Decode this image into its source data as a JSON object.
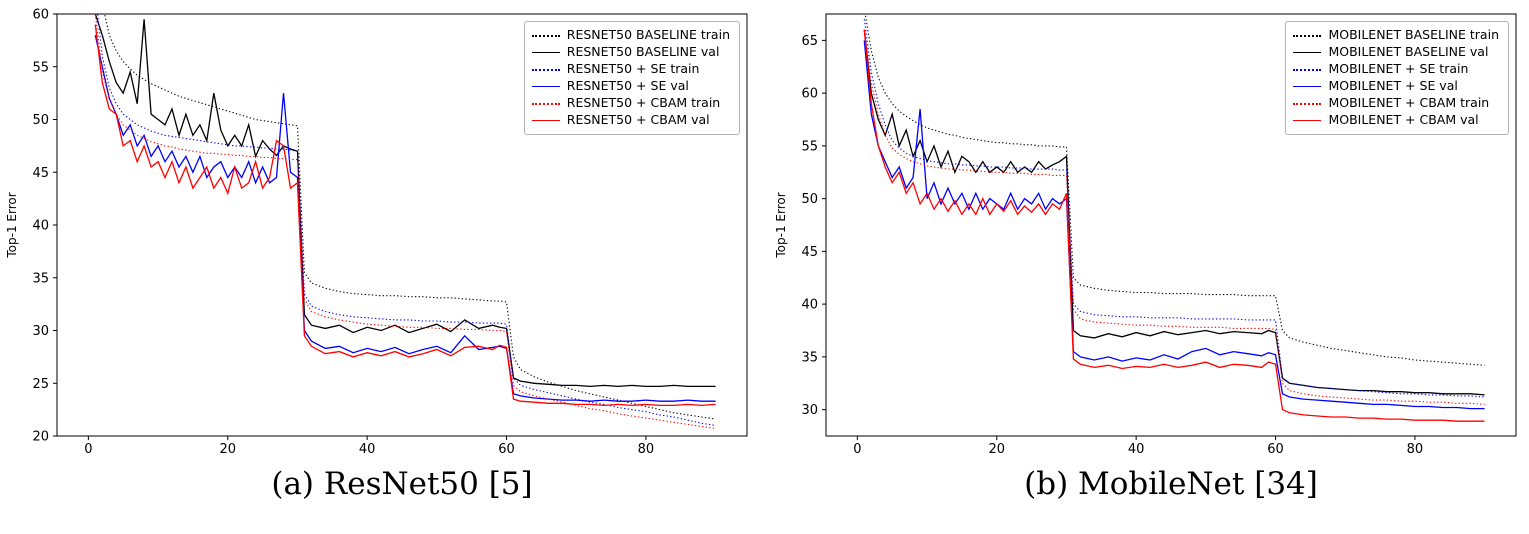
{
  "chart_data": [
    {
      "id": "resnet50",
      "type": "line",
      "caption": "(a) ResNet50 [5]",
      "title": "",
      "xlabel": "",
      "ylabel": "Top-1 Error",
      "ylim": [
        20,
        60
      ],
      "xlim": [
        -4.5,
        94.5
      ],
      "yticks": [
        20,
        25,
        30,
        35,
        40,
        45,
        50,
        55,
        60
      ],
      "xticks": [
        0,
        20,
        40,
        60,
        80
      ],
      "grid": false,
      "legend_position": "upper right",
      "x": [
        1,
        2,
        3,
        4,
        5,
        6,
        7,
        8,
        9,
        10,
        11,
        12,
        13,
        14,
        15,
        16,
        17,
        18,
        19,
        20,
        21,
        22,
        23,
        24,
        25,
        26,
        27,
        28,
        29,
        30,
        31,
        32,
        34,
        36,
        38,
        40,
        42,
        44,
        46,
        48,
        50,
        52,
        54,
        56,
        58,
        59,
        60,
        61,
        62,
        64,
        66,
        68,
        70,
        72,
        74,
        76,
        78,
        80,
        82,
        84,
        86,
        88,
        90
      ],
      "series": [
        {
          "name": "RESNET50 BASELINE train",
          "color": "#000000",
          "style": "dotted",
          "values": [
            67,
            61,
            58,
            56.5,
            55.5,
            54.8,
            54.2,
            53.8,
            53.4,
            53.1,
            52.8,
            52.5,
            52.2,
            52,
            51.8,
            51.6,
            51.4,
            51.2,
            51,
            50.8,
            50.6,
            50.4,
            50.2,
            50,
            49.9,
            49.8,
            49.7,
            49.6,
            49.5,
            49.4,
            35.5,
            34.5,
            34,
            33.7,
            33.5,
            33.4,
            33.3,
            33.3,
            33.2,
            33.2,
            33.1,
            33.1,
            33,
            32.9,
            32.8,
            32.8,
            32.7,
            27.5,
            26.3,
            25.6,
            25.1,
            24.7,
            24.3,
            24,
            23.7,
            23.4,
            23.1,
            22.8,
            22.5,
            22.2,
            22,
            21.8,
            21.6
          ]
        },
        {
          "name": "RESNET50 BASELINE val",
          "color": "#000000",
          "style": "solid",
          "values": [
            60,
            58,
            55.5,
            53.5,
            52.5,
            54.5,
            51.5,
            59.5,
            50.5,
            50,
            49.5,
            51,
            48.5,
            50.5,
            48.5,
            49.5,
            48,
            52.5,
            49,
            47.5,
            48.5,
            47.5,
            49.5,
            46.5,
            48,
            47.2,
            46.6,
            47.5,
            47.2,
            47,
            31.5,
            30.5,
            30.2,
            30.5,
            29.8,
            30.3,
            30,
            30.5,
            29.8,
            30.2,
            30.6,
            29.9,
            31,
            30.2,
            30.5,
            30.3,
            30.2,
            25.5,
            25.2,
            25,
            24.9,
            24.8,
            24.8,
            24.7,
            24.8,
            24.7,
            24.8,
            24.7,
            24.7,
            24.8,
            24.7,
            24.7,
            24.7
          ]
        },
        {
          "name": "RESNET50 + SE train",
          "color": "#0000ff",
          "style": "dotted",
          "values": [
            62,
            56,
            53,
            51.5,
            50.5,
            50,
            49.5,
            49.2,
            48.9,
            48.7,
            48.5,
            48.4,
            48.3,
            48.2,
            48.1,
            48,
            47.9,
            47.8,
            47.7,
            47.6,
            47.5,
            47.5,
            47.4,
            47.4,
            47.3,
            47.3,
            47.2,
            47.2,
            47.1,
            47,
            33.5,
            32.3,
            31.8,
            31.5,
            31.3,
            31.2,
            31.1,
            31,
            31,
            30.9,
            30.9,
            30.8,
            30.8,
            30.7,
            30.7,
            30.7,
            30.6,
            25.5,
            24.8,
            24.4,
            24.1,
            23.8,
            23.5,
            23.2,
            23,
            22.7,
            22.5,
            22.3,
            22,
            21.8,
            21.5,
            21.2,
            21
          ]
        },
        {
          "name": "RESNET50 + SE val",
          "color": "#0000ff",
          "style": "solid",
          "values": [
            58,
            55,
            52,
            50.5,
            48.5,
            49.5,
            47.5,
            48.5,
            46.5,
            47.5,
            46,
            47,
            45.5,
            46.5,
            45,
            46.5,
            44.5,
            45.5,
            46,
            44.5,
            45.5,
            44.5,
            46,
            44,
            45.5,
            44,
            44.5,
            52.5,
            45,
            44.5,
            30,
            29,
            28.3,
            28.5,
            27.9,
            28.3,
            28,
            28.4,
            27.8,
            28.2,
            28.5,
            27.9,
            29.5,
            28.2,
            28.4,
            28.5,
            28.3,
            24,
            23.8,
            23.6,
            23.5,
            23.4,
            23.4,
            23.3,
            23.4,
            23.3,
            23.3,
            23.4,
            23.3,
            23.3,
            23.4,
            23.3,
            23.3
          ]
        },
        {
          "name": "RESNET50 + CBAM train",
          "color": "#ff0000",
          "style": "dotted",
          "values": [
            60,
            54.5,
            52,
            50.5,
            49.5,
            49,
            48.5,
            48.2,
            47.9,
            47.7,
            47.5,
            47.4,
            47.2,
            47.1,
            47,
            46.9,
            46.8,
            46.8,
            46.7,
            46.7,
            46.6,
            46.6,
            46.5,
            46.5,
            46.4,
            46.4,
            46.3,
            46.3,
            46.2,
            46.2,
            33,
            31.8,
            31.3,
            31,
            30.8,
            30.6,
            30.5,
            30.4,
            30.3,
            30.3,
            30.2,
            30.2,
            30.1,
            30.1,
            30,
            30,
            29.9,
            24.8,
            24.2,
            23.8,
            23.5,
            23.2,
            22.9,
            22.6,
            22.4,
            22.1,
            21.9,
            21.7,
            21.5,
            21.3,
            21.1,
            20.9,
            20.7
          ]
        },
        {
          "name": "RESNET50 + CBAM val",
          "color": "#ff0000",
          "style": "solid",
          "values": [
            59,
            53.5,
            51,
            50.5,
            47.5,
            48,
            46,
            47.5,
            45.5,
            46,
            44.5,
            46,
            44,
            45.5,
            43.5,
            44.5,
            45.5,
            43.5,
            44.5,
            43,
            45.5,
            43.5,
            44,
            46,
            43.5,
            44.5,
            48,
            47.5,
            43.5,
            44,
            29.5,
            28.5,
            27.8,
            28,
            27.5,
            27.9,
            27.6,
            28,
            27.5,
            27.8,
            28.2,
            27.6,
            28.4,
            28.5,
            28.2,
            28.6,
            28.4,
            23.5,
            23.3,
            23.2,
            23.1,
            23.1,
            23,
            23,
            22.9,
            23,
            22.9,
            23,
            22.9,
            22.9,
            23,
            22.9,
            23
          ]
        }
      ]
    },
    {
      "id": "mobilenet",
      "type": "line",
      "caption": "(b) MobileNet [34]",
      "title": "",
      "xlabel": "",
      "ylabel": "Top-1 Error",
      "ylim": [
        27.5,
        67.5
      ],
      "xlim": [
        -4.5,
        94.5
      ],
      "yticks": [
        30,
        35,
        40,
        45,
        50,
        55,
        60,
        65
      ],
      "xticks": [
        0,
        20,
        40,
        60,
        80
      ],
      "grid": false,
      "legend_position": "upper right",
      "x": [
        1,
        2,
        3,
        4,
        5,
        6,
        7,
        8,
        9,
        10,
        11,
        12,
        13,
        14,
        15,
        16,
        17,
        18,
        19,
        20,
        21,
        22,
        23,
        24,
        25,
        26,
        27,
        28,
        29,
        30,
        31,
        32,
        34,
        36,
        38,
        40,
        42,
        44,
        46,
        48,
        50,
        52,
        54,
        56,
        58,
        59,
        60,
        61,
        62,
        64,
        66,
        68,
        70,
        72,
        74,
        76,
        78,
        80,
        82,
        84,
        86,
        88,
        90
      ],
      "series": [
        {
          "name": "MOBILENET BASELINE train",
          "color": "#000000",
          "style": "dotted",
          "values": [
            68,
            64,
            61.5,
            60,
            59,
            58.3,
            57.8,
            57.4,
            57,
            56.7,
            56.5,
            56.3,
            56.1,
            56,
            55.8,
            55.7,
            55.6,
            55.5,
            55.4,
            55.3,
            55.3,
            55.2,
            55.2,
            55.1,
            55.1,
            55,
            55,
            55,
            54.9,
            54.9,
            42.5,
            41.8,
            41.5,
            41.3,
            41.2,
            41.1,
            41.1,
            41,
            41,
            41,
            40.9,
            40.9,
            40.9,
            40.8,
            40.8,
            40.8,
            40.8,
            37.5,
            36.8,
            36.4,
            36.1,
            35.8,
            35.6,
            35.4,
            35.2,
            35,
            34.9,
            34.7,
            34.6,
            34.5,
            34.4,
            34.3,
            34.2
          ]
        },
        {
          "name": "MOBILENET BASELINE val",
          "color": "#000000",
          "style": "solid",
          "values": [
            66,
            60,
            57.5,
            56,
            58,
            55,
            56.5,
            54,
            55.5,
            53.5,
            55,
            53,
            54.5,
            52.5,
            54,
            53.5,
            52.5,
            53.5,
            52.5,
            53,
            52.5,
            53.5,
            52.5,
            53,
            52.5,
            53.5,
            52.8,
            53.2,
            53.5,
            54,
            37.5,
            37,
            36.8,
            37.2,
            36.9,
            37.3,
            37,
            37.4,
            37.1,
            37.3,
            37.5,
            37.2,
            37.4,
            37.3,
            37.2,
            37.5,
            37.3,
            33,
            32.5,
            32.3,
            32.1,
            32,
            31.9,
            31.8,
            31.8,
            31.7,
            31.7,
            31.6,
            31.6,
            31.5,
            31.5,
            31.5,
            31.4
          ]
        },
        {
          "name": "MOBILENET + SE train",
          "color": "#0000ff",
          "style": "dotted",
          "values": [
            67,
            62,
            59,
            57,
            55.5,
            54.8,
            54.3,
            54,
            53.8,
            53.6,
            53.5,
            53.4,
            53.3,
            53.3,
            53.2,
            53.2,
            53.1,
            53.1,
            53,
            53,
            53,
            52.9,
            52.9,
            52.9,
            52.8,
            52.8,
            52.8,
            52.8,
            52.7,
            52.7,
            40,
            39.3,
            39,
            38.9,
            38.8,
            38.8,
            38.7,
            38.7,
            38.7,
            38.6,
            38.6,
            38.6,
            38.6,
            38.5,
            38.5,
            38.5,
            38.5,
            33,
            32.5,
            32.3,
            32.1,
            32,
            31.9,
            31.8,
            31.7,
            31.6,
            31.5,
            31.5,
            31.4,
            31.4,
            31.3,
            31.3,
            31.2
          ]
        },
        {
          "name": "MOBILENET + SE val",
          "color": "#0000ff",
          "style": "solid",
          "values": [
            65,
            58,
            55,
            53.5,
            52,
            53,
            51,
            52,
            58.5,
            50,
            51.5,
            49.5,
            51,
            49.5,
            50.5,
            49,
            50.5,
            49,
            50,
            49.5,
            49,
            50.5,
            49,
            50,
            49.5,
            50.5,
            49,
            50,
            49.5,
            50,
            35.5,
            35,
            34.7,
            35,
            34.6,
            34.9,
            34.7,
            35.2,
            34.8,
            35.5,
            35.8,
            35.2,
            35.5,
            35.3,
            35.1,
            35.4,
            35.2,
            31.5,
            31.2,
            31,
            30.9,
            30.8,
            30.7,
            30.6,
            30.5,
            30.5,
            30.4,
            30.3,
            30.3,
            30.2,
            30.2,
            30.1,
            30.1
          ]
        },
        {
          "name": "MOBILENET + CBAM train",
          "color": "#ff0000",
          "style": "dotted",
          "values": [
            66,
            61,
            58,
            56,
            54.8,
            54.2,
            53.8,
            53.5,
            53.3,
            53.1,
            53,
            52.9,
            52.8,
            52.8,
            52.7,
            52.7,
            52.6,
            52.6,
            52.5,
            52.5,
            52.5,
            52.4,
            52.4,
            52.4,
            52.3,
            52.3,
            52.3,
            52.2,
            52.2,
            52.2,
            39.5,
            38.6,
            38.3,
            38.2,
            38.1,
            38,
            38,
            37.9,
            37.9,
            37.8,
            37.8,
            37.8,
            37.7,
            37.7,
            37.7,
            37.7,
            37.6,
            32.5,
            31.8,
            31.5,
            31.3,
            31.2,
            31.1,
            31,
            30.9,
            30.9,
            30.8,
            30.8,
            30.7,
            30.7,
            30.6,
            30.6,
            30.5
          ]
        },
        {
          "name": "MOBILENET + CBAM val",
          "color": "#ff0000",
          "style": "solid",
          "values": [
            66,
            59,
            55,
            53,
            51.5,
            52.5,
            50.5,
            51.5,
            49.5,
            50.5,
            49,
            50,
            48.8,
            49.8,
            48.5,
            49.5,
            48.5,
            50,
            48.5,
            49.5,
            48.8,
            49.8,
            48.5,
            49.3,
            48.7,
            49.5,
            48.5,
            49.5,
            49,
            50.5,
            34.8,
            34.3,
            34,
            34.2,
            33.9,
            34.1,
            34,
            34.3,
            34,
            34.2,
            34.5,
            34,
            34.3,
            34.2,
            34,
            34.5,
            34.3,
            30,
            29.7,
            29.5,
            29.4,
            29.3,
            29.3,
            29.2,
            29.2,
            29.1,
            29.1,
            29,
            29,
            29,
            28.9,
            28.9,
            28.9
          ]
        }
      ]
    }
  ]
}
